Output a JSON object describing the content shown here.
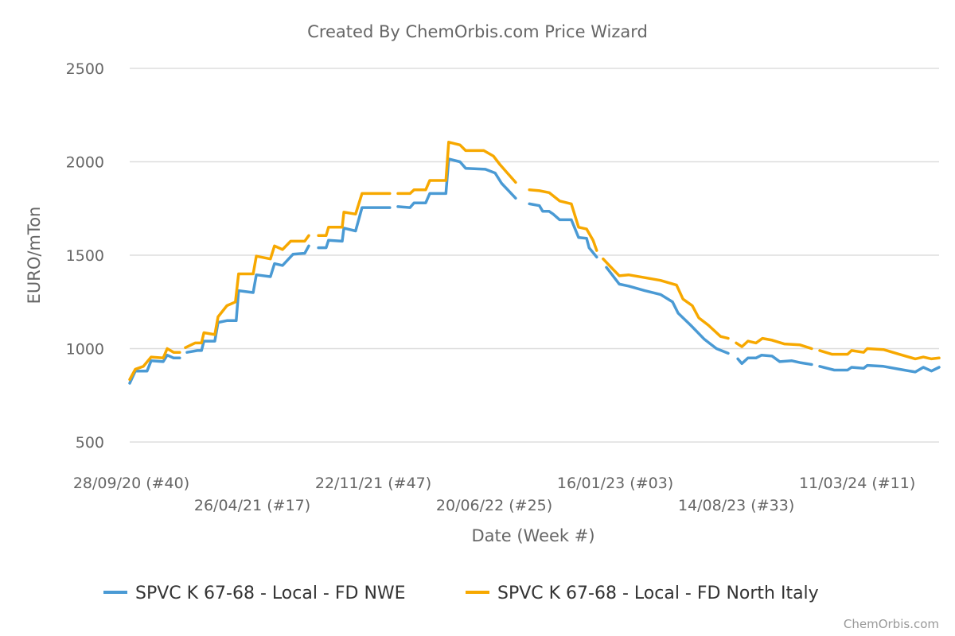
{
  "chart_data": {
    "type": "line",
    "title": "Created By ChemOrbis.com Price Wizard",
    "xlabel": "Date (Week #)",
    "ylabel": "EURO/mTon",
    "ylim": [
      500,
      2500
    ],
    "yticks": [
      500,
      1000,
      1500,
      2000,
      2500
    ],
    "x_unit": "weeks since 28/09/20",
    "xlim": [
      0,
      200.7
    ],
    "xticks": [
      {
        "week": 0,
        "label": "28/09/20 (#40)"
      },
      {
        "week": 30,
        "label": "26/04/21 (#17)"
      },
      {
        "week": 60,
        "label": "22/11/21 (#47)"
      },
      {
        "week": 90,
        "label": "20/06/22 (#25)"
      },
      {
        "week": 120,
        "label": "16/01/23 (#03)"
      },
      {
        "week": 150,
        "label": "14/08/23 (#33)"
      },
      {
        "week": 180,
        "label": "11/03/24 (#11)"
      }
    ],
    "grid": true,
    "legend_position": "bottom",
    "series": [
      {
        "name": "SPVC K 67-68 - Local - FD NWE",
        "color": "#4a9ad4",
        "points": [
          [
            0,
            815
          ],
          [
            1.4,
            880
          ],
          [
            4.3,
            880
          ],
          [
            5.3,
            935
          ],
          [
            8.3,
            930
          ],
          [
            9.3,
            965
          ],
          [
            10.9,
            950
          ],
          [
            12.4,
            950
          ],
          null,
          [
            14.2,
            980
          ],
          [
            16.8,
            990
          ],
          [
            17.8,
            990
          ],
          [
            18.4,
            1040
          ],
          [
            21.1,
            1040
          ],
          [
            21.9,
            1140
          ],
          [
            24.1,
            1150
          ],
          [
            26.4,
            1150
          ],
          [
            27,
            1310
          ],
          [
            30.6,
            1300
          ],
          [
            31.4,
            1395
          ],
          [
            34.9,
            1385
          ],
          [
            35.9,
            1455
          ],
          [
            37.9,
            1445
          ],
          [
            40.5,
            1505
          ],
          [
            43.4,
            1510
          ],
          [
            44.4,
            1550
          ],
          null,
          [
            46.8,
            1540
          ],
          [
            48.7,
            1540
          ],
          [
            49.3,
            1580
          ],
          [
            52.7,
            1575
          ],
          [
            53.1,
            1645
          ],
          [
            56,
            1630
          ],
          [
            57.6,
            1755
          ],
          [
            64.5,
            1755
          ],
          null,
          [
            66.5,
            1760
          ],
          [
            69.5,
            1755
          ],
          [
            70.5,
            1780
          ],
          [
            73.4,
            1780
          ],
          [
            74.4,
            1830
          ],
          [
            78.4,
            1830
          ],
          [
            79.1,
            2015
          ],
          [
            81.9,
            2000
          ],
          [
            83.3,
            1965
          ],
          [
            88.2,
            1960
          ],
          [
            90.6,
            1940
          ],
          [
            92.2,
            1885
          ],
          [
            95.7,
            1805
          ],
          null,
          [
            99.1,
            1775
          ],
          [
            101.6,
            1765
          ],
          [
            102.4,
            1735
          ],
          [
            104,
            1735
          ],
          [
            105,
            1720
          ],
          [
            106.6,
            1690
          ],
          [
            109.5,
            1690
          ],
          [
            111.3,
            1595
          ],
          [
            113.3,
            1590
          ],
          [
            113.9,
            1540
          ],
          [
            115.8,
            1490
          ],
          null,
          [
            118.2,
            1435
          ],
          [
            121.4,
            1345
          ],
          [
            123.7,
            1335
          ],
          [
            127.7,
            1310
          ],
          [
            131.6,
            1290
          ],
          [
            134.6,
            1250
          ],
          [
            136,
            1190
          ],
          [
            139.1,
            1125
          ],
          [
            142.5,
            1050
          ],
          [
            145.5,
            1000
          ],
          [
            148.4,
            975
          ],
          null,
          [
            150.8,
            945
          ],
          [
            151.8,
            920
          ],
          [
            153.3,
            950
          ],
          [
            155.3,
            950
          ],
          [
            156.7,
            965
          ],
          [
            159.3,
            960
          ],
          [
            161.2,
            930
          ],
          [
            164.2,
            935
          ],
          [
            166.2,
            925
          ],
          [
            169.1,
            915
          ],
          null,
          [
            171.1,
            905
          ],
          [
            174.7,
            885
          ],
          [
            178,
            885
          ],
          [
            179,
            900
          ],
          [
            182,
            895
          ],
          [
            182.9,
            910
          ],
          [
            186.9,
            905
          ],
          [
            190.8,
            890
          ],
          [
            194.8,
            875
          ],
          [
            196.8,
            900
          ],
          [
            198.8,
            880
          ],
          [
            200.7,
            900
          ]
        ]
      },
      {
        "name": "SPVC K 67-68 - Local - FD North Italy",
        "color": "#f7a800",
        "points": [
          [
            0,
            835
          ],
          [
            1.4,
            890
          ],
          [
            3.4,
            905
          ],
          [
            5.3,
            955
          ],
          [
            8.3,
            950
          ],
          [
            9.3,
            1000
          ],
          [
            10.9,
            980
          ],
          [
            12.4,
            980
          ],
          null,
          [
            13.8,
            1005
          ],
          [
            16.2,
            1030
          ],
          [
            17.8,
            1030
          ],
          [
            18.4,
            1085
          ],
          [
            21.1,
            1075
          ],
          [
            21.9,
            1170
          ],
          [
            24.1,
            1230
          ],
          [
            26.2,
            1250
          ],
          [
            27,
            1400
          ],
          [
            30.6,
            1400
          ],
          [
            31.4,
            1495
          ],
          [
            34.9,
            1480
          ],
          [
            35.9,
            1550
          ],
          [
            37.9,
            1530
          ],
          [
            39.9,
            1575
          ],
          [
            43.4,
            1575
          ],
          [
            44.4,
            1605
          ],
          null,
          [
            46.8,
            1605
          ],
          [
            48.7,
            1605
          ],
          [
            49.3,
            1650
          ],
          [
            52.7,
            1650
          ],
          [
            53.1,
            1730
          ],
          [
            56,
            1720
          ],
          [
            57.6,
            1830
          ],
          [
            64.5,
            1830
          ],
          null,
          [
            66.5,
            1830
          ],
          [
            69.5,
            1830
          ],
          [
            70.5,
            1850
          ],
          [
            73.4,
            1850
          ],
          [
            74.4,
            1900
          ],
          [
            78.4,
            1900
          ],
          [
            79.1,
            2105
          ],
          [
            81.9,
            2090
          ],
          [
            83.3,
            2060
          ],
          [
            87.8,
            2060
          ],
          [
            90.2,
            2030
          ],
          [
            91.8,
            1985
          ],
          [
            95.7,
            1890
          ],
          null,
          [
            99.1,
            1850
          ],
          [
            101.6,
            1845
          ],
          [
            104,
            1835
          ],
          [
            106.6,
            1790
          ],
          [
            109.5,
            1775
          ],
          [
            111.3,
            1650
          ],
          [
            113.3,
            1640
          ],
          [
            114.9,
            1580
          ],
          [
            115.8,
            1525
          ],
          null,
          [
            117.4,
            1480
          ],
          [
            119.8,
            1425
          ],
          [
            121.4,
            1390
          ],
          [
            123.7,
            1395
          ],
          [
            127.7,
            1380
          ],
          [
            131.6,
            1365
          ],
          [
            135.6,
            1340
          ],
          [
            137.2,
            1265
          ],
          [
            139.5,
            1230
          ],
          [
            141.1,
            1165
          ],
          [
            143.5,
            1125
          ],
          [
            146.5,
            1065
          ],
          [
            148.4,
            1055
          ],
          null,
          [
            150.4,
            1030
          ],
          [
            151.8,
            1010
          ],
          [
            153.3,
            1040
          ],
          [
            155.3,
            1030
          ],
          [
            156.9,
            1055
          ],
          [
            159.3,
            1045
          ],
          [
            162.3,
            1025
          ],
          [
            166.2,
            1020
          ],
          [
            169.1,
            1000
          ],
          null,
          [
            171.1,
            990
          ],
          [
            174.1,
            970
          ],
          [
            178,
            970
          ],
          [
            179,
            990
          ],
          [
            182,
            980
          ],
          [
            182.9,
            1000
          ],
          [
            186.9,
            995
          ],
          [
            190.8,
            970
          ],
          [
            194.8,
            945
          ],
          [
            196.8,
            955
          ],
          [
            198.8,
            945
          ],
          [
            200.7,
            950
          ]
        ]
      }
    ]
  },
  "credit": "ChemOrbis.com"
}
